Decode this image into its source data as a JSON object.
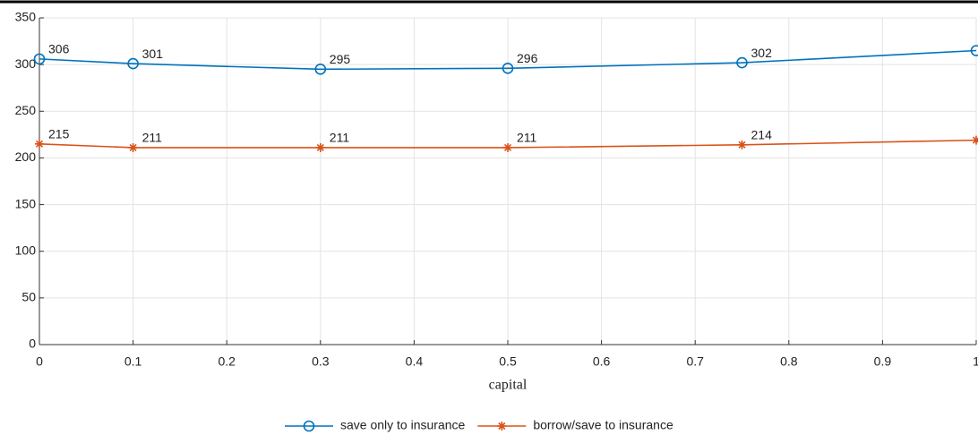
{
  "chart_data": {
    "type": "line",
    "xlabel": "capital",
    "x": [
      0,
      0.1,
      0.3,
      0.5,
      0.75,
      1
    ],
    "series": [
      {
        "name": "save only to insurance",
        "color": "#0072BD",
        "marker": "o",
        "values": [
          306,
          301,
          295,
          296,
          302,
          315
        ],
        "value_labels": [
          "306",
          "301",
          "295",
          "296",
          "302",
          null
        ]
      },
      {
        "name": "borrow/save to insurance",
        "color": "#D95319",
        "marker": "*",
        "values": [
          215,
          211,
          211,
          211,
          214,
          219
        ],
        "value_labels": [
          "215",
          "211",
          "211",
          "211",
          "214",
          null
        ]
      }
    ],
    "xlim": [
      0,
      1
    ],
    "xticks": [
      0,
      0.1,
      0.2,
      0.3,
      0.4,
      0.5,
      0.6,
      0.7,
      0.8,
      0.9,
      1
    ],
    "ylim": [
      0,
      350
    ],
    "yticks": [
      0,
      50,
      100,
      150,
      200,
      250,
      300,
      350
    ],
    "grid": true,
    "legend": "bottom"
  }
}
